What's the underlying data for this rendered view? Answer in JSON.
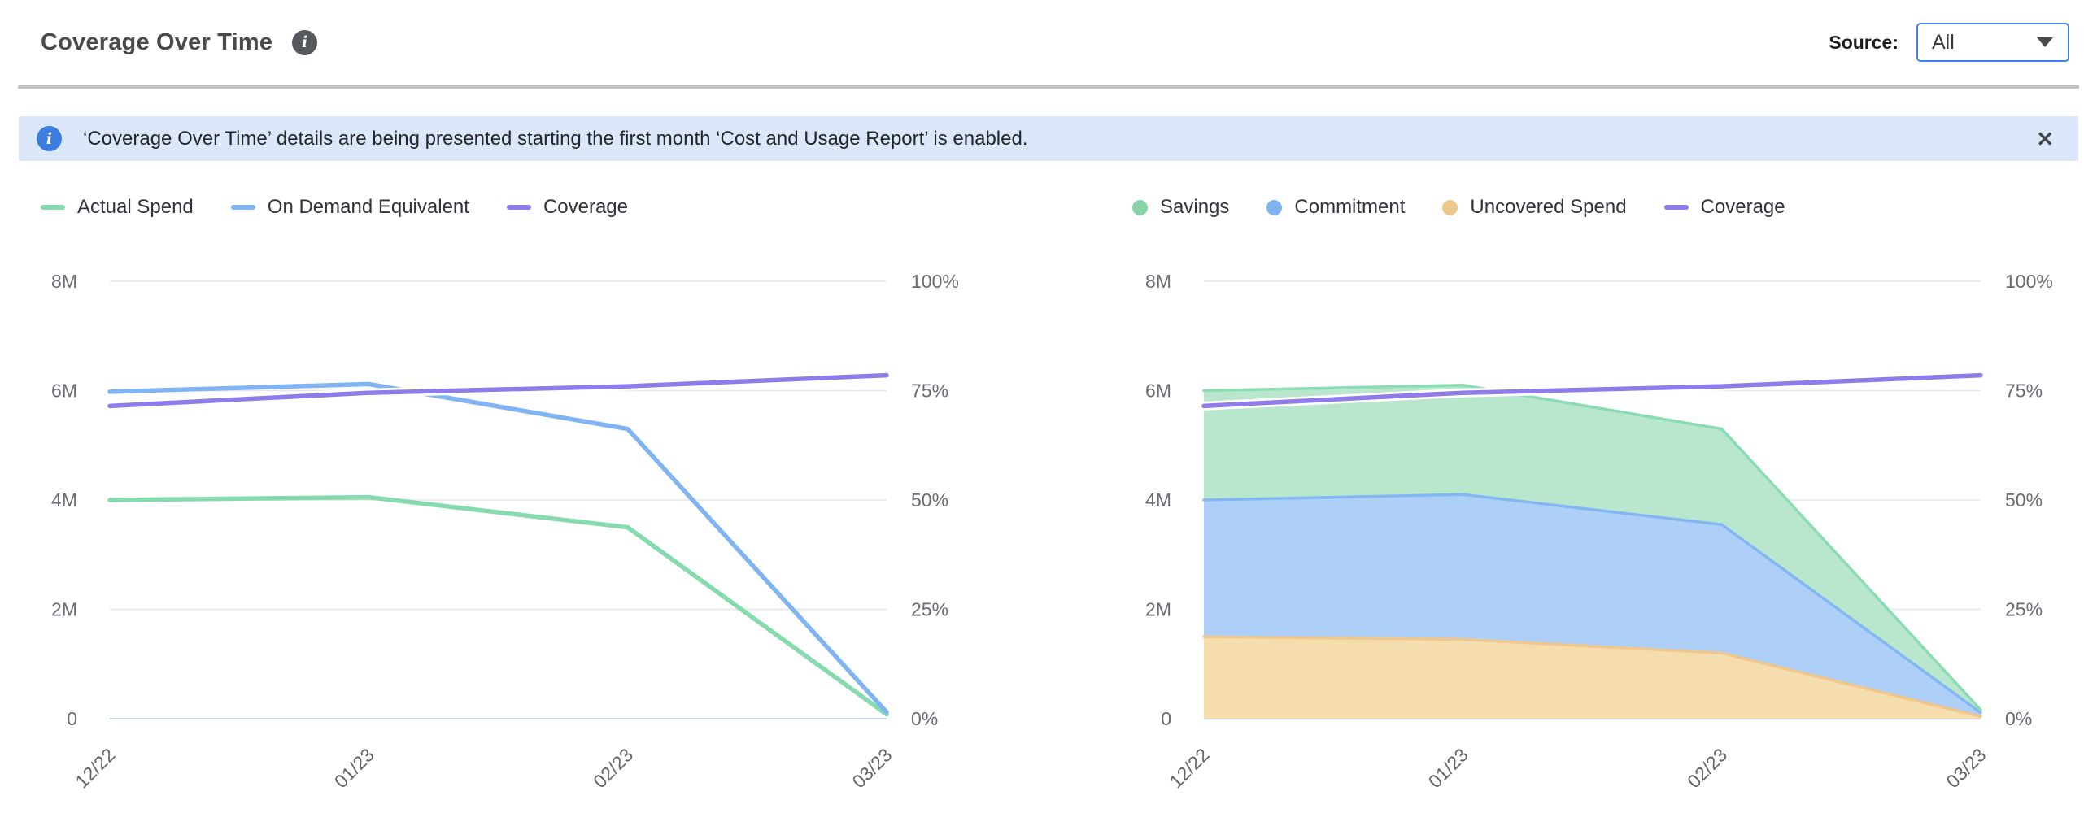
{
  "header": {
    "title": "Coverage Over Time",
    "source_label": "Source:",
    "source_value": "All"
  },
  "banner": {
    "message": "‘Coverage Over Time’ details are being presented starting the first month ‘Cost and Usage Report’ is enabled.",
    "close_icon": "✕"
  },
  "colors": {
    "accent_blue": "#3f83e9",
    "banner_bg": "#dce8fa",
    "banner_icon": "#3b7de0",
    "green": "#85dbad",
    "blue": "#80b4f2",
    "purple": "#8f7ce8",
    "orange": "#edc88d"
  },
  "chart_data": [
    {
      "type": "line",
      "title": "",
      "x": [
        "12/22",
        "01/23",
        "02/23",
        "03/23"
      ],
      "y_left": {
        "label": "spend",
        "unit": "M",
        "min": 0,
        "max_m": 8,
        "ticks": [
          "0",
          "2M",
          "4M",
          "6M",
          "8M"
        ]
      },
      "y_right": {
        "label": "coverage",
        "unit": "%",
        "min": 0,
        "max_pct": 100,
        "ticks": [
          "0%",
          "25%",
          "50%",
          "75%",
          "100%"
        ]
      },
      "grid": true,
      "legend_position": "top-left",
      "series": [
        {
          "name": "Actual Spend",
          "type": "line",
          "axis": "left",
          "unit": "M",
          "swatch": "dash",
          "color": "#85dbad",
          "values": [
            4.0,
            4.05,
            3.5,
            0.08
          ]
        },
        {
          "name": "On Demand Equivalent",
          "type": "line",
          "axis": "left",
          "unit": "M",
          "swatch": "dash",
          "color": "#80b4f2",
          "values": [
            5.98,
            6.12,
            5.3,
            0.12
          ]
        },
        {
          "name": "Coverage",
          "type": "line",
          "axis": "right",
          "unit": "%",
          "swatch": "dash",
          "color": "#8f7ce8",
          "values": [
            71.5,
            74.5,
            76,
            78.5
          ]
        }
      ]
    },
    {
      "type": "area",
      "stacked": true,
      "title": "",
      "x": [
        "12/22",
        "01/23",
        "02/23",
        "03/23"
      ],
      "y_left": {
        "label": "spend",
        "unit": "M",
        "min": 0,
        "max_m": 8,
        "ticks": [
          "0",
          "2M",
          "4M",
          "6M",
          "8M"
        ]
      },
      "y_right": {
        "label": "coverage",
        "unit": "%",
        "min": 0,
        "max_pct": 100,
        "ticks": [
          "0%",
          "25%",
          "50%",
          "75%",
          "100%"
        ]
      },
      "grid": true,
      "legend_position": "top-left",
      "stack_order": [
        "Uncovered Spend",
        "Commitment",
        "Savings"
      ],
      "series": [
        {
          "name": "Savings",
          "type": "area",
          "axis": "left",
          "unit": "M",
          "swatch": "circle",
          "color": "#8bdcb2",
          "fill": "#b9e7ce",
          "legend_color": "#8ad4ab",
          "values": [
            2.0,
            2.0,
            1.75,
            0.05
          ]
        },
        {
          "name": "Commitment",
          "type": "area",
          "axis": "left",
          "unit": "M",
          "swatch": "circle",
          "color": "#84b6f4",
          "fill": "#aed0f8",
          "legend_color": "#7fb3f2",
          "values": [
            2.5,
            2.65,
            2.35,
            0.07
          ]
        },
        {
          "name": "Uncovered Spend",
          "type": "area",
          "axis": "left",
          "unit": "M",
          "swatch": "circle",
          "color": "#f0c78c",
          "fill": "#f6ddae",
          "legend_color": "#edc88d",
          "values": [
            1.5,
            1.45,
            1.2,
            0.04
          ]
        },
        {
          "name": "Coverage",
          "type": "line",
          "axis": "right",
          "unit": "%",
          "swatch": "dash",
          "color": "#8f7ce8",
          "values": [
            71.5,
            74.5,
            76,
            78.5
          ]
        }
      ]
    }
  ]
}
